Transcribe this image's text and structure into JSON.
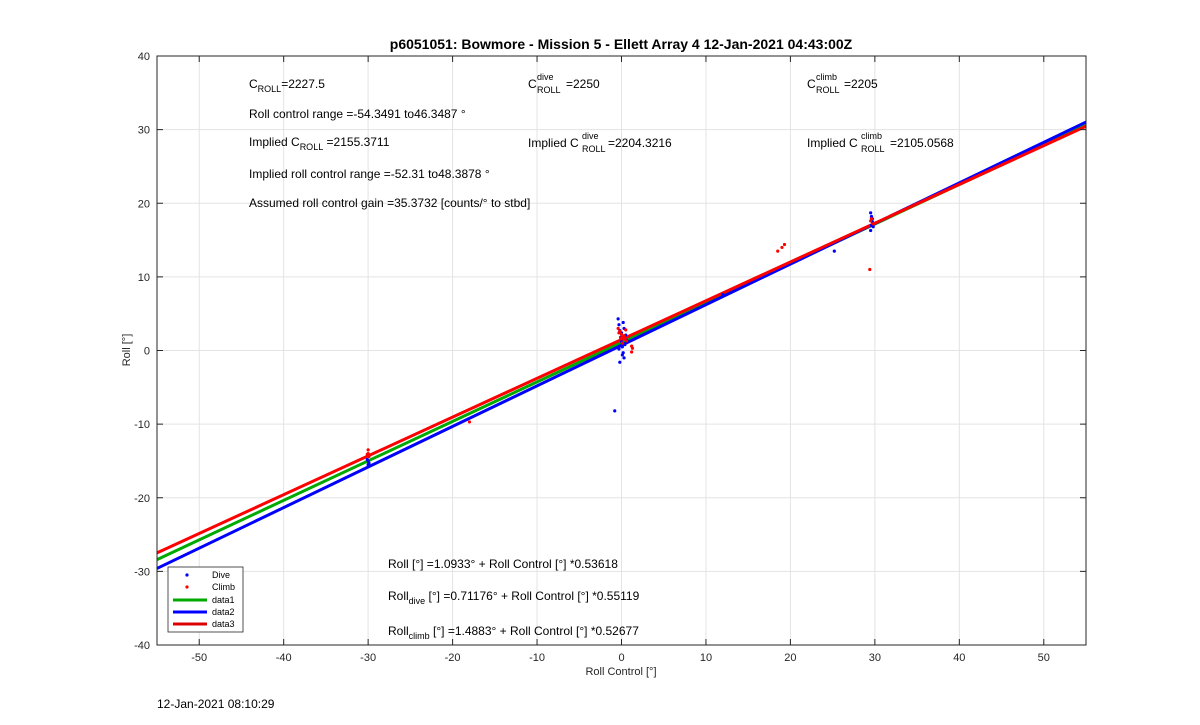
{
  "chart_data": {
    "type": "scatter",
    "title": "p6051051: Bowmore - Mission 5 - Ellett Array 4 12-Jan-2021 04:43:00Z",
    "xlabel": "Roll Control [°]",
    "ylabel": "Roll [°]",
    "xlim": [
      -55,
      55
    ],
    "ylim": [
      -40,
      40
    ],
    "x_ticks": [
      -50,
      -40,
      -30,
      -20,
      -10,
      0,
      10,
      20,
      30,
      40,
      50
    ],
    "y_ticks": [
      -40,
      -30,
      -20,
      -10,
      0,
      10,
      20,
      30,
      40
    ],
    "grid": true,
    "legend_position": "bottom-left",
    "colors": {
      "dive": "#0000ff",
      "climb": "#ff0000",
      "data1": "#00aa00",
      "data2": "#0000ff",
      "data3": "#ff0000"
    },
    "series": [
      {
        "name": "Dive",
        "kind": "points",
        "color": "#0000ff",
        "points": [
          [
            -30.0,
            -15.5
          ],
          [
            -30.0,
            -15.0
          ],
          [
            -30.1,
            -14.8
          ],
          [
            -29.9,
            -15.3
          ],
          [
            -0.8,
            -8.2
          ],
          [
            -0.4,
            4.3
          ],
          [
            -0.3,
            3.5
          ],
          [
            -0.2,
            2.7
          ],
          [
            -0.1,
            1.8
          ],
          [
            0.0,
            1.2
          ],
          [
            0.1,
            0.5
          ],
          [
            0.2,
            -0.3
          ],
          [
            0.3,
            -1.0
          ],
          [
            -0.2,
            -1.6
          ],
          [
            0.4,
            0.8
          ],
          [
            0.5,
            2.1
          ],
          [
            0.3,
            3.0
          ],
          [
            -0.3,
            0.2
          ],
          [
            0.1,
            -0.6
          ],
          [
            0.6,
            1.4
          ],
          [
            0.0,
            2.4
          ],
          [
            0.2,
            3.8
          ],
          [
            12.0,
            7.6
          ],
          [
            25.2,
            13.5
          ],
          [
            29.5,
            18.7
          ],
          [
            29.6,
            18.2
          ],
          [
            29.7,
            17.5
          ],
          [
            29.8,
            16.8
          ],
          [
            29.5,
            16.3
          ],
          [
            29.7,
            17.9
          ],
          [
            29.6,
            17.0
          ]
        ]
      },
      {
        "name": "Climb",
        "kind": "points",
        "color": "#ff0000",
        "points": [
          [
            -30.0,
            -13.5
          ],
          [
            -30.0,
            -14.0
          ],
          [
            -29.9,
            -14.4
          ],
          [
            -30.1,
            -14.1
          ],
          [
            -18.0,
            -9.7
          ],
          [
            -0.4,
            3.0
          ],
          [
            -0.2,
            2.6
          ],
          [
            0.0,
            2.2
          ],
          [
            0.2,
            1.9
          ],
          [
            0.4,
            1.5
          ],
          [
            0.1,
            1.0
          ],
          [
            -0.3,
            2.4
          ],
          [
            0.5,
            2.8
          ],
          [
            0.6,
            1.3
          ],
          [
            1.2,
            0.6
          ],
          [
            1.2,
            -0.2
          ],
          [
            1.3,
            0.3
          ],
          [
            0.3,
            2.0
          ],
          [
            -0.1,
            1.7
          ],
          [
            18.5,
            13.5
          ],
          [
            19.0,
            14.0
          ],
          [
            19.3,
            14.4
          ],
          [
            29.4,
            11.0
          ],
          [
            29.5,
            17.6
          ],
          [
            29.8,
            17.2
          ],
          [
            29.6,
            17.9
          ]
        ]
      },
      {
        "name": "data1",
        "kind": "line",
        "color": "#00aa00",
        "x": [
          -55,
          55
        ],
        "y": [
          -28.398,
          30.586
        ]
      },
      {
        "name": "data2",
        "kind": "line",
        "color": "#0000ff",
        "x": [
          -55,
          55
        ],
        "y": [
          -29.604,
          31.027
        ]
      },
      {
        "name": "data3",
        "kind": "line",
        "color": "#ff0000",
        "x": [
          -55,
          55
        ],
        "y": [
          -27.484,
          30.461
        ]
      }
    ],
    "legend": [
      "Dive",
      "Climb",
      "data1",
      "data2",
      "data3"
    ],
    "annotations": {
      "croll_main": "C",
      "croll_main_sub": "ROLL",
      "croll_main_val": "=2227.5",
      "roll_range": "Roll control range =-54.3491 to46.3487 °",
      "implied_c_main": "Implied C",
      "implied_c_main_sub": "ROLL",
      "implied_c_main_val": " =2155.3711",
      "implied_range": "Implied roll control range =-52.31 to48.3878 °",
      "gain": "Assumed roll control gain =35.3732 [counts/° to stbd]",
      "c_dive": "C",
      "c_dive_sup": "dive",
      "c_dive_sub": "ROLL",
      "c_dive_val": " =2250",
      "implied_c_dive": "Implied C",
      "implied_c_dive_sup": "dive",
      "implied_c_dive_sub": "ROLL",
      "implied_c_dive_val": " =2204.3216",
      "c_climb": "C",
      "c_climb_sup": "climb",
      "c_climb_sub": "ROLL",
      "c_climb_val": " =2205",
      "implied_c_climb": "Implied C",
      "implied_c_climb_sup": "climb",
      "implied_c_climb_sub": "ROLL",
      "implied_c_climb_val": " =2105.0568",
      "fit_all": "Roll [°] =1.0933° + Roll Control [°] *0.53618",
      "fit_dive_a": "Roll",
      "fit_dive_sub": "dive",
      "fit_dive_b": " [°] =0.71176° + Roll Control [°] *0.55119",
      "fit_climb_a": "Roll",
      "fit_climb_sub": "climb",
      "fit_climb_b": " [°] =1.4883° + Roll Control [°] *0.52677"
    }
  },
  "footer": {
    "timestamp": "12-Jan-2021 08:10:29"
  }
}
